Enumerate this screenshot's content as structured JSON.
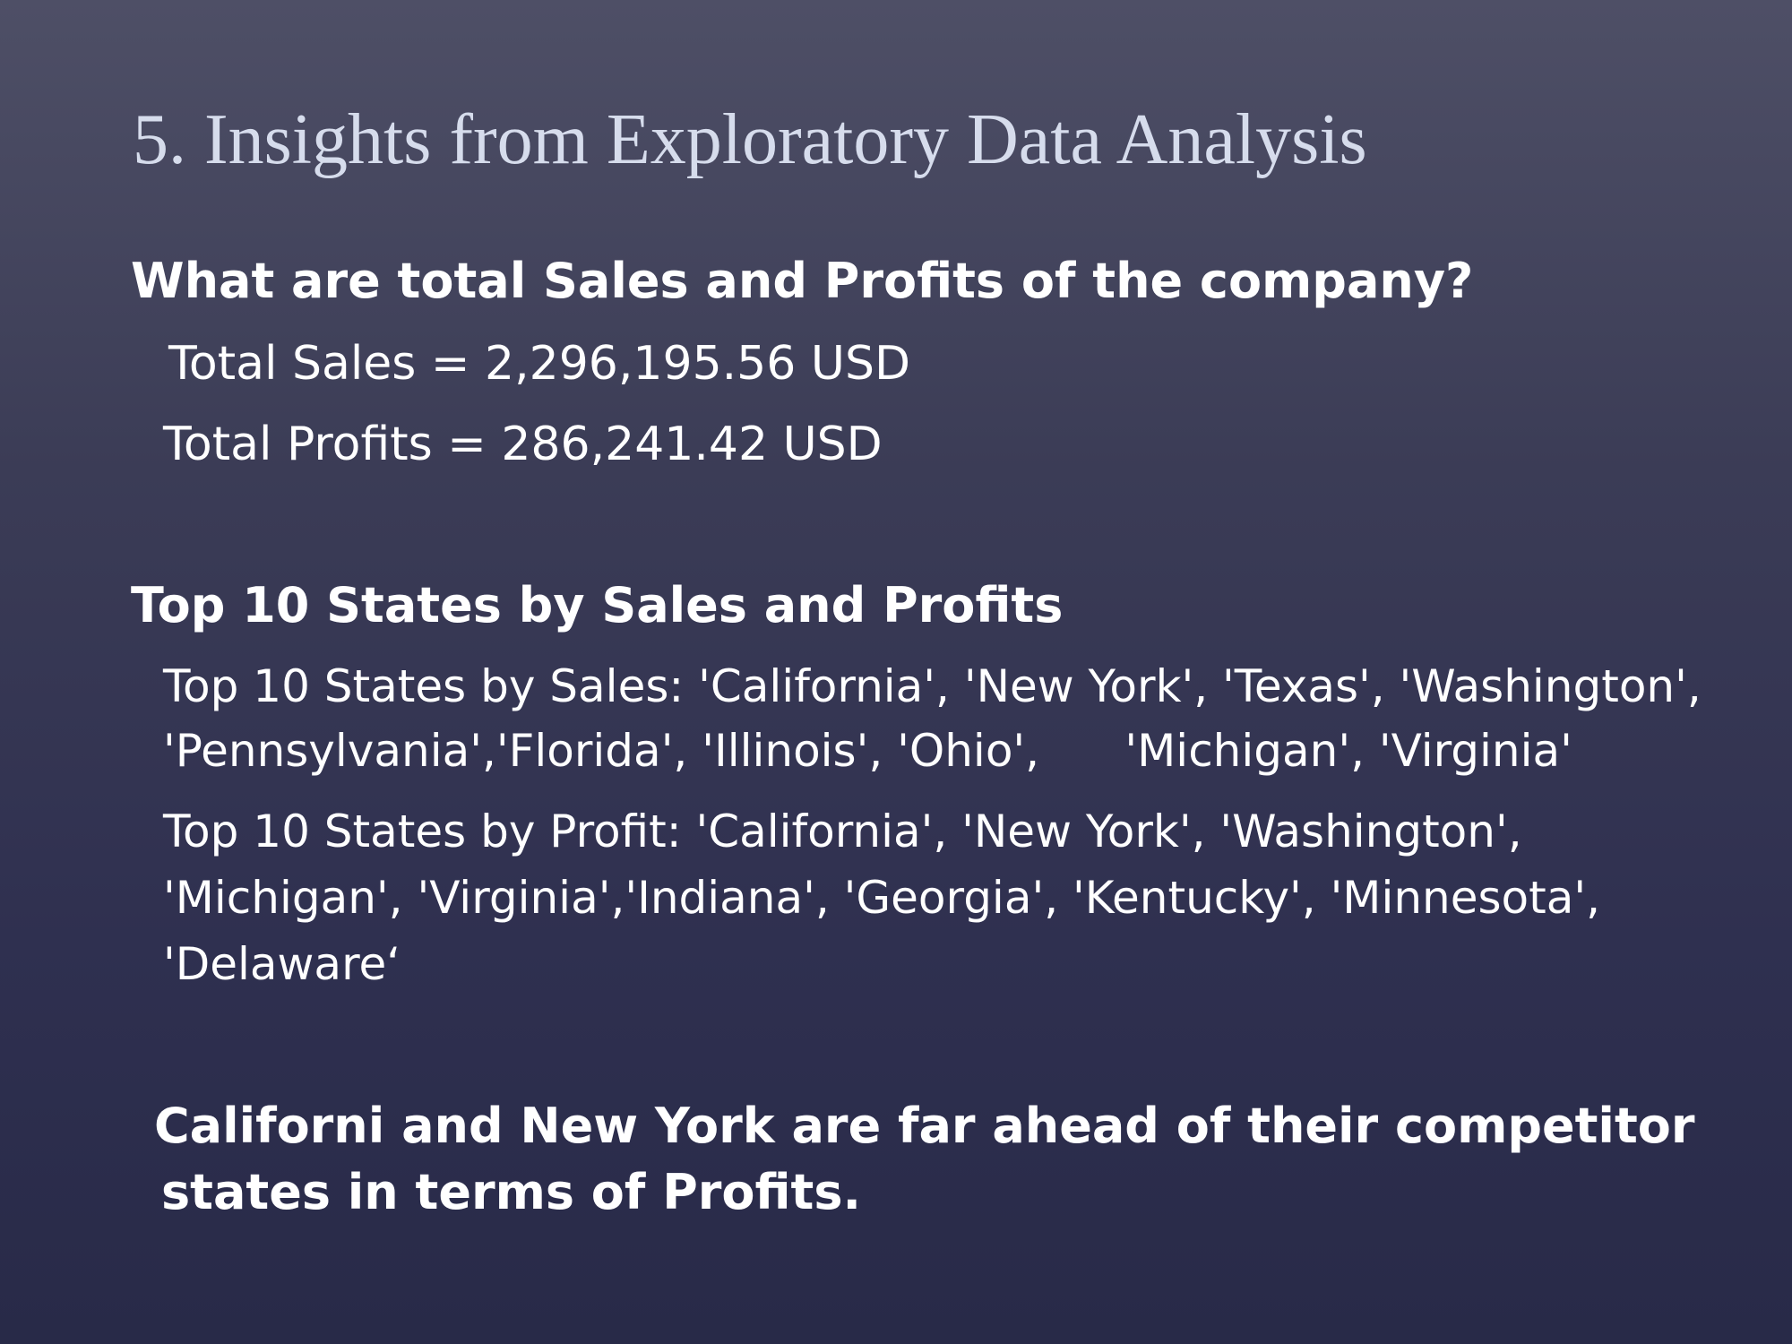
{
  "slide": {
    "title": "5. Insights from Exploratory Data Analysis",
    "background_top": "#4e4f66",
    "background_bottom": "#282a48",
    "title_color": "#d6dcec",
    "text_color": "#ffffff"
  },
  "totals": {
    "question": "What are total Sales and Profits of the company?",
    "total_sales": "Total Sales = 2,296,195.56 USD",
    "total_profits": "Total Profits = 286,241.42 USD"
  },
  "top_states": {
    "heading": "Top 10 States by Sales and Profits",
    "by_sales_line1": "Top 10 States by Sales: 'California', 'New York', 'Texas',  'Washington',",
    "by_sales_line2": "'Pennsylvania','Florida', 'Illinois', 'Ohio',      'Michigan', 'Virginia'",
    "by_profit_line1": "Top 10 States by Profit: 'California', 'New York', 'Washington',",
    "by_profit_line2": "'Michigan', 'Virginia','Indiana', 'Georgia', 'Kentucky', 'Minnesota',",
    "by_profit_line3": "'Delaware‘"
  },
  "conclusion": {
    "line1": "Californi and New York are far ahead of their competitor",
    "line2": "states in terms of Profits."
  }
}
